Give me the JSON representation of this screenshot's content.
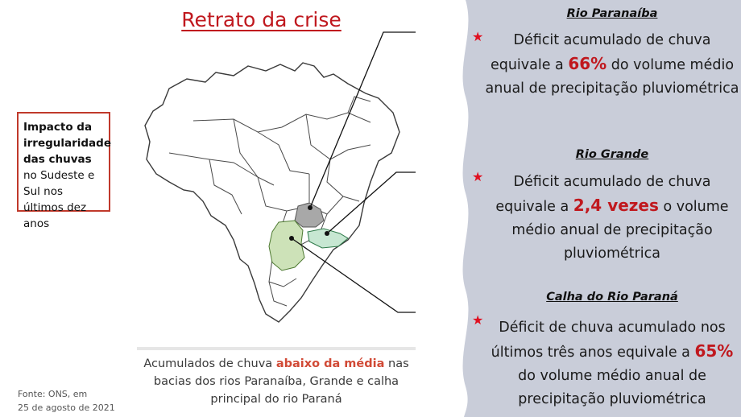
{
  "title": "Retrato da crise",
  "impact": {
    "bold_part": "Impacto da irregularidade das chuvas",
    "rest_part": " no Sudeste e Sul nos últimos dez anos"
  },
  "caption": {
    "pre": "Acumulados de chuva ",
    "highlight": "abaixo da média",
    "post": " nas bacias dos rios Paranaíba, Grande e calha principal do rio Paraná"
  },
  "source": {
    "line1": "Fonte: ONS, em",
    "line2": "25 de agosto de 2021"
  },
  "colors": {
    "accent_red": "#c0181e",
    "panel_bg": "#c9cdd9",
    "basin_paranaiba": "#a8a8a8",
    "basin_grande": "#c7e7d2",
    "basin_parana": "#cde2b8"
  },
  "sections": [
    {
      "title": "Rio Paranaíba",
      "pre": "Déficit acumulado de chuva equivale a ",
      "value": "66%",
      "post": " do volume médio anual de precipitação pluviométrica"
    },
    {
      "title": "Rio Grande",
      "pre": "Déficit acumulado de chuva equivale a ",
      "value": "2,4 vezes",
      "post": " o volume médio anual de precipitação pluviométrica"
    },
    {
      "title": "Calha do Rio Paraná",
      "pre": "Déficit de chuva acumulado nos últimos três anos equivale a ",
      "value": "65%",
      "post": " do volume médio anual de precipitação pluviométrica"
    }
  ],
  "icons": {
    "bullet": "star-icon",
    "bullet_glyph": "★"
  }
}
